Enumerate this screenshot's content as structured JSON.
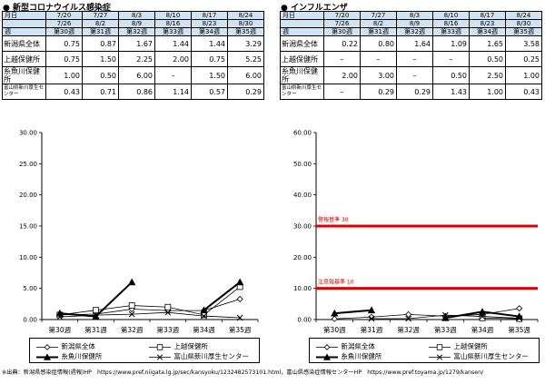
{
  "covid": {
    "title": "新型コロナウイルス感染症",
    "header_rows": [
      [
        "月日",
        "7/20",
        "7/27",
        "8/3",
        "8/10",
        "8/17",
        "8/24"
      ],
      [
        "",
        "7/26",
        "8/2",
        "8/9",
        "8/16",
        "8/23",
        "8/30"
      ],
      [
        "週",
        "第30週",
        "第31週",
        "第32週",
        "第33週",
        "第34週",
        "第35週"
      ]
    ],
    "rows": [
      {
        "label": "新潟県全体",
        "values": [
          "0.75",
          "0.87",
          "1.67",
          "1.44",
          "1.44",
          "3.29"
        ]
      },
      {
        "label": "上越保健所",
        "values": [
          "0.75",
          "1.50",
          "2.25",
          "2.00",
          "0.75",
          "5.25"
        ]
      },
      {
        "label": "糸魚川保健所",
        "values": [
          "1.00",
          "0.50",
          "6.00",
          "–",
          "1.50",
          "6.00"
        ]
      },
      {
        "label": "富山県新川厚生センター",
        "values": [
          "0.43",
          "0.71",
          "0.86",
          "1.14",
          "0.57",
          "0.29"
        ]
      }
    ]
  },
  "flu": {
    "title": "インフルエンザ",
    "header_rows": [
      [
        "月日",
        "7/20",
        "7/27",
        "8/3",
        "8/10",
        "8/17",
        "8/24"
      ],
      [
        "",
        "7/26",
        "8/2",
        "8/9",
        "8/16",
        "8/23",
        "8/30"
      ],
      [
        "週",
        "第30週",
        "第31週",
        "第32週",
        "第33週",
        "第34週",
        "第35週"
      ]
    ],
    "rows": [
      {
        "label": "新潟県全体",
        "values": [
          "0.22",
          "0.80",
          "1.64",
          "1.09",
          "1.65",
          "3.58"
        ]
      },
      {
        "label": "上越保健所",
        "values": [
          "–",
          "–",
          "–",
          "–",
          "0.50",
          "0.25"
        ]
      },
      {
        "label": "糸魚川保健所",
        "values": [
          "2.00",
          "3.00",
          "–",
          "0.50",
          "2.50",
          "1.00"
        ]
      },
      {
        "label": "富山県新川厚生センター",
        "values": [
          "–",
          "0.29",
          "0.29",
          "1.43",
          "1.00",
          "0.43"
        ]
      }
    ]
  },
  "chart_data": [
    {
      "type": "line",
      "categories": [
        "第30週",
        "第31週",
        "第32週",
        "第33週",
        "第34週",
        "第35週"
      ],
      "ylim": [
        0,
        30
      ],
      "yticks": [
        "0.00",
        "5.00",
        "10.00",
        "15.00",
        "20.00",
        "25.00",
        "30.00"
      ],
      "grid": false,
      "legend": "bottom",
      "series": [
        {
          "name": "新潟県全体",
          "values": [
            0.75,
            0.87,
            1.67,
            1.44,
            1.44,
            3.29
          ]
        },
        {
          "name": "上越保健所",
          "values": [
            0.75,
            1.5,
            2.25,
            2.0,
            0.75,
            5.25
          ]
        },
        {
          "name": "糸魚川保健所",
          "values": [
            1.0,
            0.5,
            6.0,
            null,
            1.5,
            6.0
          ]
        },
        {
          "name": "富山県新川厚生センター",
          "values": [
            0.43,
            0.71,
            0.86,
            1.14,
            0.57,
            0.29
          ]
        }
      ]
    },
    {
      "type": "line",
      "categories": [
        "第30週",
        "第31週",
        "第32週",
        "第33週",
        "第34週",
        "第35週"
      ],
      "ylim": [
        0,
        60
      ],
      "yticks": [
        "0.00",
        "10.00",
        "20.00",
        "30.00",
        "40.00",
        "50.00",
        "60.00"
      ],
      "grid": false,
      "legend": "bottom",
      "thresholds": [
        {
          "label": "警報基準 30",
          "value": 30,
          "color": "#e00000"
        },
        {
          "label": "注意報基準 10",
          "value": 10,
          "color": "#e00000"
        }
      ],
      "series": [
        {
          "name": "新潟県全体",
          "values": [
            0.22,
            0.8,
            1.64,
            1.09,
            1.65,
            3.58
          ]
        },
        {
          "name": "上越保健所",
          "values": [
            null,
            null,
            null,
            null,
            0.5,
            0.25
          ]
        },
        {
          "name": "糸魚川保健所",
          "values": [
            2.0,
            3.0,
            null,
            0.5,
            2.5,
            1.0
          ]
        },
        {
          "name": "富山県新川厚生センター",
          "values": [
            null,
            0.29,
            0.29,
            1.43,
            1.0,
            0.43
          ]
        }
      ]
    }
  ],
  "legend_labels": [
    "新潟県全体",
    "上越保健所",
    "糸魚川保健所",
    "富山県新川厚生センター"
  ],
  "footnote": "※出典：新潟県感染症情報(週報)HP　https://www.pref.niigata.lg.jp/sec/kansyoku/1232482573101.html，富山県感染症情報センターHP　https://www.pref.toyama.jp/1279/kansen/"
}
